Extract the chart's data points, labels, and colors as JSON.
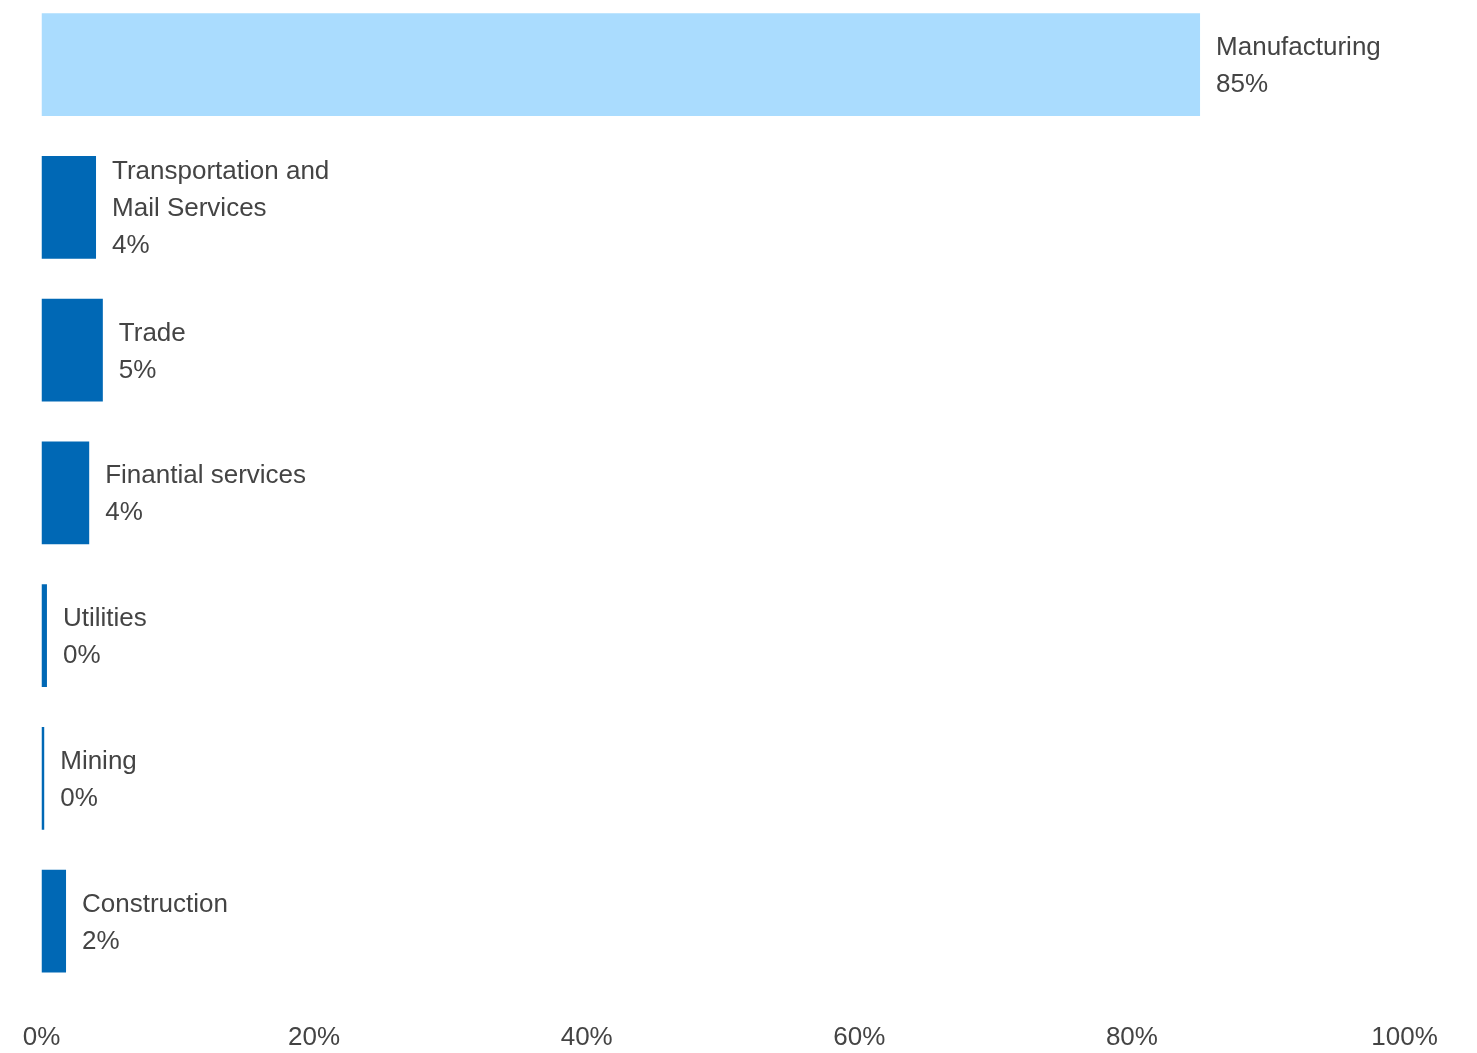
{
  "chart_data": {
    "type": "bar",
    "orientation": "horizontal",
    "categories": [
      "Manufacturing",
      "Transportation and Mail Services",
      "Trade",
      "Finantial services",
      "Utilities",
      "Mining",
      "Construction"
    ],
    "values": [
      85,
      4,
      4.5,
      3.5,
      0.4,
      0.2,
      1.8
    ],
    "value_labels": [
      "85%",
      "4%",
      "5%",
      "4%",
      "0%",
      "0%",
      "2%"
    ],
    "colors": [
      "#aadcfe",
      "#0068b5",
      "#0068b5",
      "#0068b5",
      "#0068b5",
      "#0068b5",
      "#0068b5"
    ],
    "xlim": [
      0,
      100
    ],
    "xticks": [
      {
        "value": 0,
        "label": "0%"
      },
      {
        "value": 20,
        "label": "20%"
      },
      {
        "value": 40,
        "label": "40%"
      },
      {
        "value": 60,
        "label": "60%"
      },
      {
        "value": 80,
        "label": "80%"
      },
      {
        "value": 100,
        "label": "100%"
      }
    ],
    "tick_labels": "x",
    "grid": false
  }
}
